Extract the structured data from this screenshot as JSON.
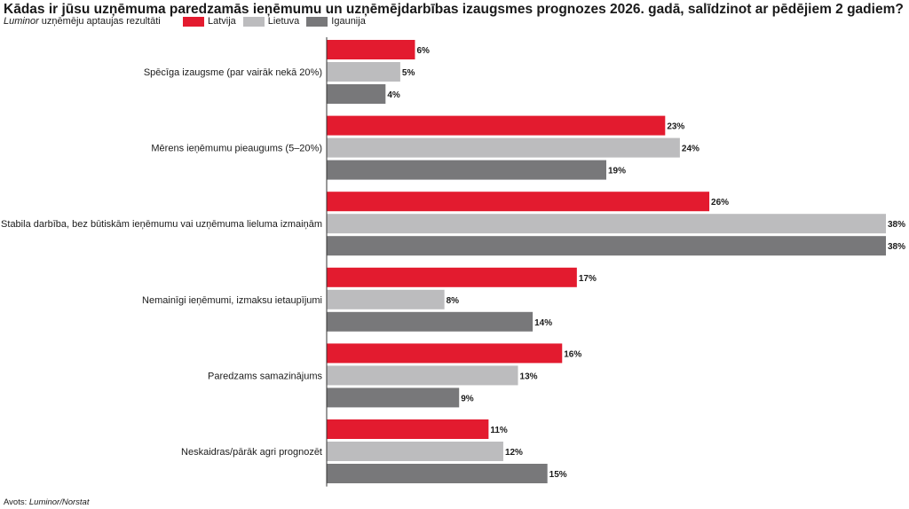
{
  "header": {
    "title": "Kādas ir jūsu uzņēmuma paredzamās ieņēmumu un uzņēmējdarbības izaugsmes prognozes 2026. gadā, salīdzinot ar pēdējiem 2 gadiem?",
    "subtitle_brand": "Luminor",
    "subtitle_rest": " uzņēmēju aptaujas rezultāti"
  },
  "footer": {
    "source_prefix": "Avots: ",
    "source_name": "Luminor/Norstat"
  },
  "chart_data": {
    "type": "bar",
    "orientation": "horizontal",
    "categories": [
      "Spēcīga izaugsme (par vairāk nekā 20%)",
      "Mērens ieņēmumu pieaugums (5–20%)",
      "Stabila darbība, bez būtiskām ieņēmumu vai uzņēmuma lieluma izmaiņām",
      "Nemainīgi ieņēmumi, izmaksu ietaupījumi",
      "Paredzams samazinājums",
      "Neskaidras/pārāk agri prognozēt"
    ],
    "series": [
      {
        "name": "Latvija",
        "color": "#e31b2f",
        "values": [
          6,
          23,
          26,
          17,
          16,
          11
        ]
      },
      {
        "name": "Lietuva",
        "color": "#bcbcbe",
        "values": [
          5,
          24,
          38,
          8,
          13,
          12
        ]
      },
      {
        "name": "Igaunija",
        "color": "#78787a",
        "values": [
          4,
          19,
          38,
          14,
          9,
          15
        ]
      }
    ],
    "value_suffix": "%",
    "legend_position": "top",
    "grid": false
  }
}
